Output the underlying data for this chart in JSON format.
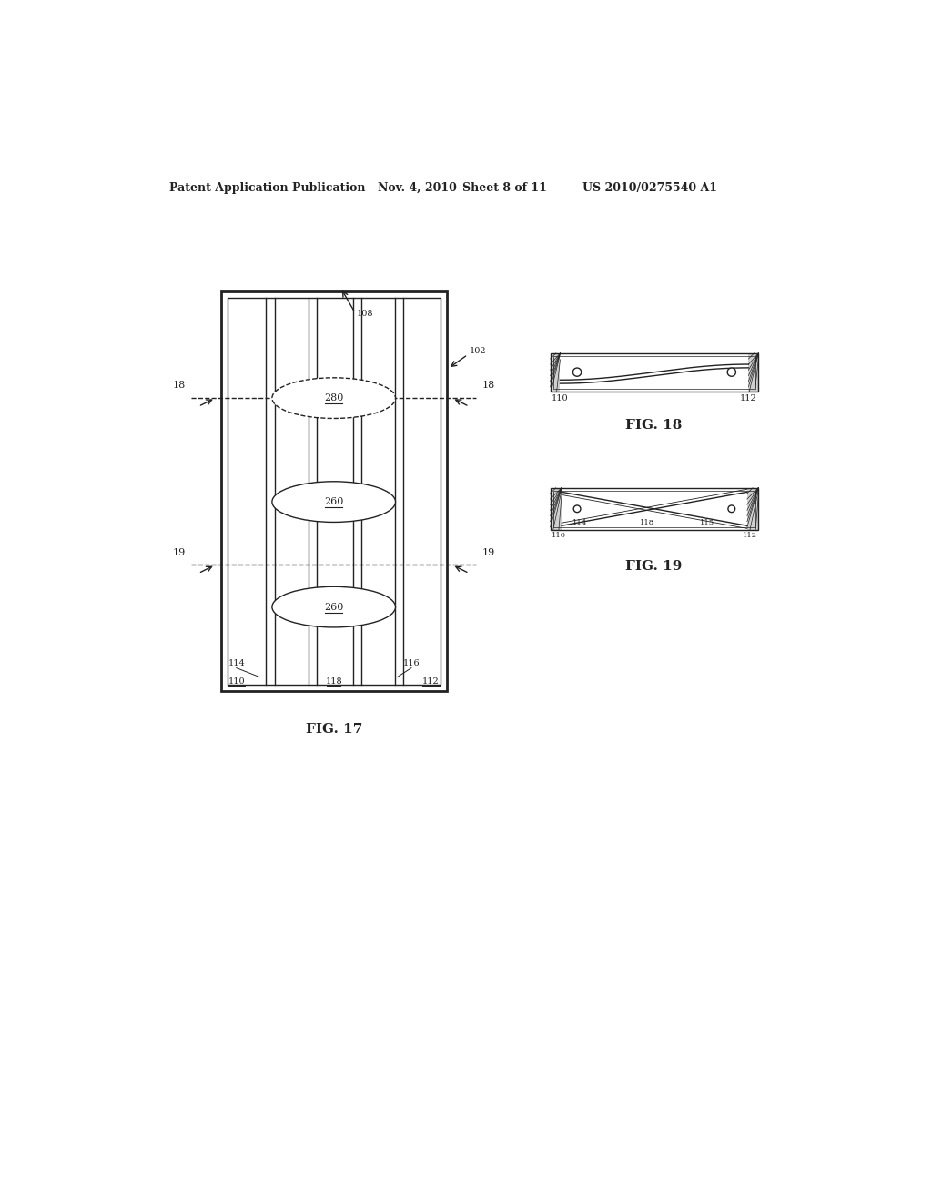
{
  "bg_color": "#ffffff",
  "header_text": "Patent Application Publication",
  "header_date": "Nov. 4, 2010",
  "header_sheet": "Sheet 8 of 11",
  "header_patent": "US 2010/0275540 A1",
  "fig17_label": "FIG. 17",
  "fig18_label": "FIG. 18",
  "fig19_label": "FIG. 19",
  "ref_108": "108",
  "ref_102": "102",
  "ref_18_left": "18",
  "ref_18_right": "18",
  "ref_19_left": "19",
  "ref_19_right": "19",
  "ref_280": "280",
  "ref_260_mid": "260",
  "ref_260_bot": "260",
  "ref_110": "110",
  "ref_112_fig17": "112",
  "ref_114": "114",
  "ref_116": "116",
  "ref_118": "118",
  "ref_110_fig18": "110",
  "ref_112_fig18": "112",
  "ref_110_fig19": "110",
  "ref_112_fig19": "112",
  "ref_114_fig19": "114",
  "ref_115_fig19": "115",
  "ref_118_fig19": "118"
}
